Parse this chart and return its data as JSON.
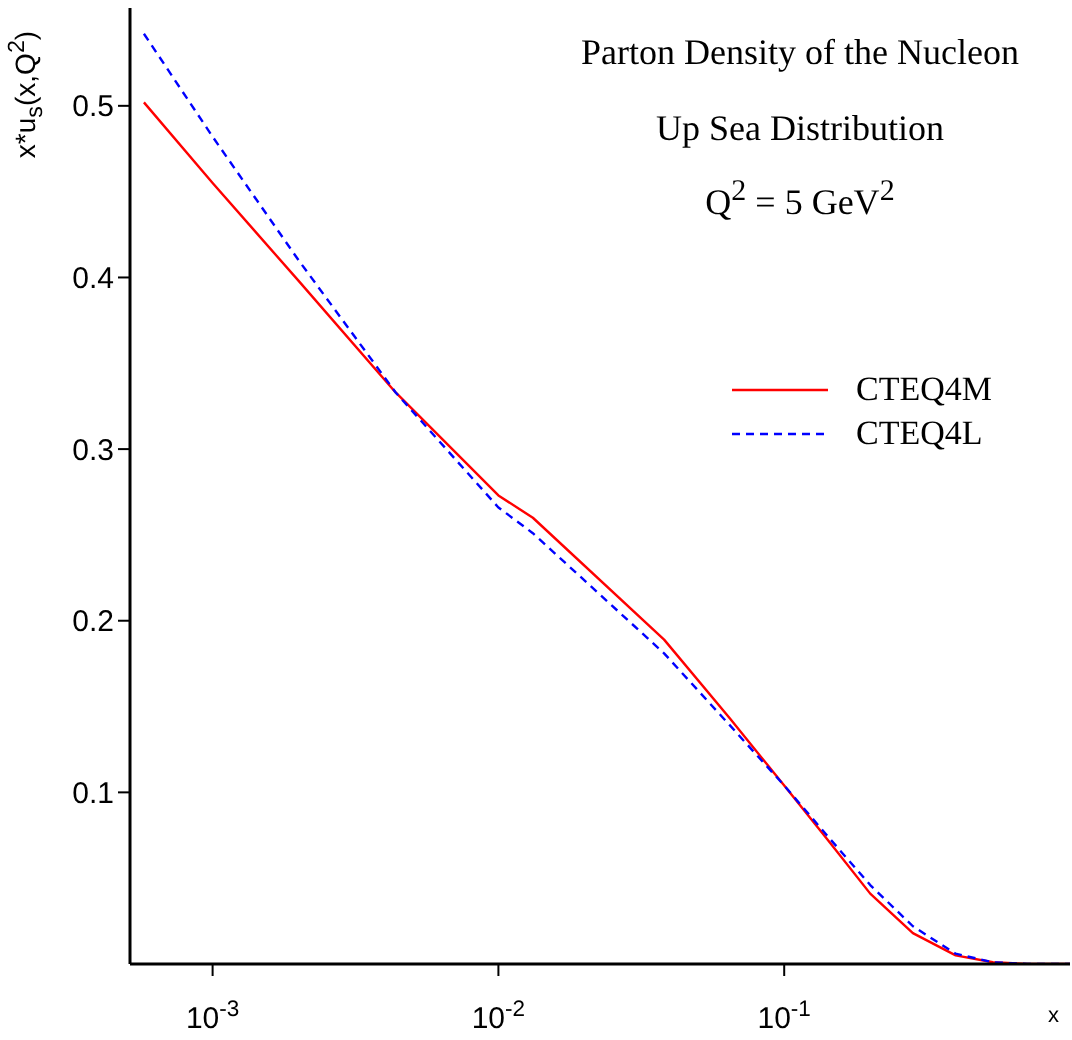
{
  "chart_data": {
    "type": "line",
    "title": "Parton Density of the Nucleon",
    "subtitle": "Up Sea Distribution",
    "annotations": [
      "Q$^{2}$ = 5 GeV$^{2}$"
    ],
    "xlabel": "x",
    "ylabel": "x*u$_{s}$(x,Q$^{2}$)",
    "log": "x",
    "xlim": [
      0.000514,
      1
    ],
    "xticks": [
      {
        "value": 0.001,
        "label": "10$^{-3}$"
      },
      {
        "value": 0.01,
        "label": "10$^{-2}$"
      },
      {
        "value": 0.1,
        "label": "10$^{-1}$"
      }
    ],
    "ylim": [
      0,
      0.557
    ],
    "yticks": [
      0.1,
      0.2,
      0.3,
      0.4,
      0.5
    ],
    "legend": "right",
    "marker": "none",
    "x": [
      0.000575,
      0.001,
      0.002,
      0.00437,
      0.01,
      0.0132,
      0.038,
      0.0646,
      0.1,
      0.141,
      0.2,
      0.282,
      0.398,
      0.537,
      0.708,
      1
    ],
    "series": [
      {
        "name": "CTEQ4M",
        "color": "#ff0000",
        "line_style": "solid",
        "values": [
          0.502,
          0.455,
          0.398,
          0.333,
          0.273,
          0.26,
          0.189,
          0.143,
          0.104,
          0.073,
          0.041,
          0.018,
          0.005,
          0.001,
          0,
          0
        ]
      },
      {
        "name": "CTEQ4L",
        "color": "#0000ff",
        "line_style": "dashed",
        "values": [
          0.542,
          0.482,
          0.41,
          0.333,
          0.266,
          0.251,
          0.181,
          0.139,
          0.104,
          0.075,
          0.046,
          0.022,
          0.006,
          0.001,
          0,
          0
        ]
      }
    ]
  }
}
